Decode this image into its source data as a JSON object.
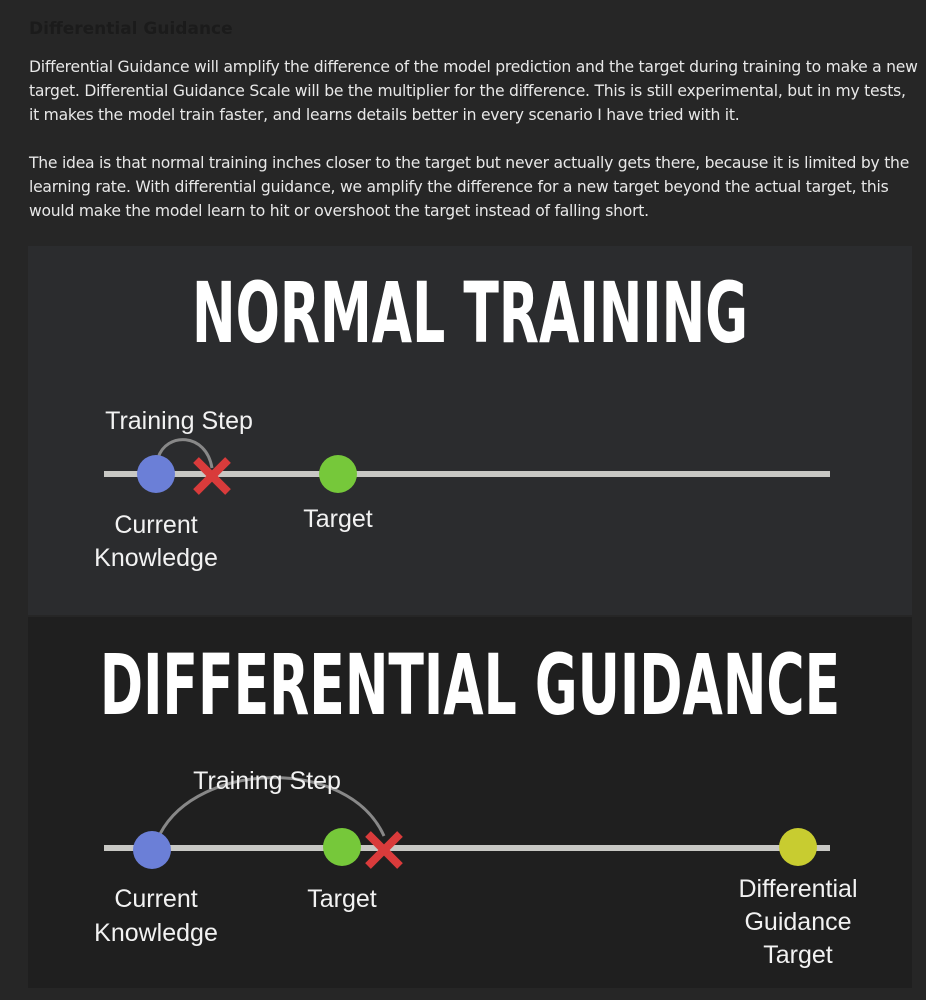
{
  "heading": "Differential Guidance",
  "paragraphs": [
    "Differential Guidance will amplify the difference of the model prediction and the target during training to make a new target. Differential Guidance Scale will be the multiplier for the difference. This is still experimental, but in my tests, it makes the model train faster, and learns details better in every scenario I have tried with it.",
    "The idea is that normal training inches closer to the target but never actually gets there, because it is limited by the learning rate. With differential guidance, we amplify the difference for a new target beyond the actual target, this would make the model learn to hit or overshoot the target instead of falling short."
  ],
  "diagram": {
    "normal": {
      "title": "NORMAL TRAINING",
      "step_label": "Training Step",
      "current_label": [
        "Current",
        "Knowledge"
      ],
      "target_label": "Target"
    },
    "differential": {
      "title": "DIFFERENTIAL GUIDANCE",
      "step_label": "Training Step",
      "current_label": [
        "Current",
        "Knowledge"
      ],
      "target_label": "Target",
      "dg_target_label": [
        "Differential",
        "Guidance",
        "Target"
      ]
    },
    "colors": {
      "current": "#6b7fd7",
      "target": "#76c83a",
      "dg_target": "#c8cc30",
      "miss_x": "#d93b3b",
      "line": "#c8c8c4"
    }
  }
}
